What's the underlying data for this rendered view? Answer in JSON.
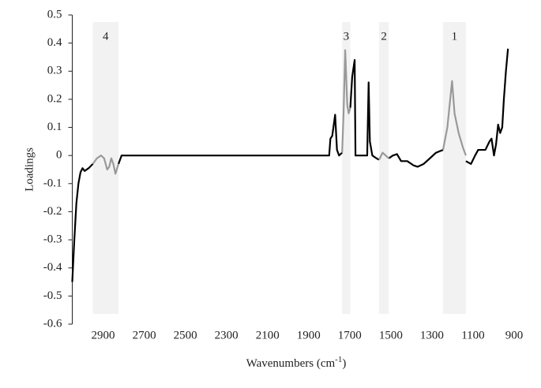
{
  "chart_data": {
    "type": "line",
    "ylabel": "Loadings",
    "xlabel": {
      "text": "Wavenumbers (cm",
      "sup": "-1",
      "tail": ")"
    },
    "xlim": [
      3050,
      870
    ],
    "xticks": [
      2900,
      2700,
      2500,
      2300,
      2100,
      1900,
      1700,
      1500,
      1300,
      1100,
      900
    ],
    "ylim": [
      -0.6,
      0.5
    ],
    "yticks": [
      0.5,
      0.4,
      0.3,
      0.2,
      0.1,
      0,
      -0.1,
      -0.2,
      -0.3,
      -0.4,
      -0.5,
      -0.6
    ],
    "bands": [
      {
        "label": "4",
        "from": 2950,
        "to": 2825
      },
      {
        "label": "3",
        "from": 1737,
        "to": 1697
      },
      {
        "label": "2",
        "from": 1557,
        "to": 1510
      },
      {
        "label": "1",
        "from": 1246,
        "to": 1135
      }
    ],
    "band_color": "#f2f2f2",
    "series": [
      {
        "color": "#000000",
        "x": [
          3050,
          3040,
          3030,
          3020,
          3010,
          3000,
          2990,
          2970,
          2950,
          2900,
          2825,
          2810,
          1800,
          1794,
          1785,
          1771,
          1762,
          1752,
          1737,
          1720,
          1697,
          1688,
          1676,
          1672,
          1615,
          1608,
          1602,
          1590,
          1570,
          1557,
          1535,
          1510,
          1490,
          1470,
          1450,
          1420,
          1390,
          1370,
          1340,
          1310,
          1280,
          1246,
          1200,
          1135,
          1110,
          1090,
          1075,
          1040,
          1020,
          1010,
          998,
          988,
          978,
          968,
          958,
          950,
          940,
          930
        ],
        "values": [
          -0.45,
          -0.3,
          -0.17,
          -0.1,
          -0.06,
          -0.045,
          -0.055,
          -0.045,
          -0.03,
          null,
          -0.03,
          0,
          0,
          0.06,
          0.07,
          0.145,
          0.02,
          0,
          0.01,
          null,
          0.17,
          0.28,
          0.34,
          0,
          0,
          0.26,
          0.05,
          0,
          -0.01,
          -0.015,
          null,
          -0.01,
          0,
          0.005,
          -0.02,
          -0.02,
          -0.035,
          -0.04,
          -0.03,
          -0.01,
          0.01,
          0.02,
          null,
          -0.02,
          -0.03,
          0,
          0.02,
          0.02,
          0.05,
          0.06,
          0,
          0.04,
          0.11,
          0.08,
          0.1,
          0.2,
          0.3,
          0.38
        ]
      },
      {
        "color": "#999999",
        "x": [
          2950,
          2930,
          2910,
          2895,
          2880,
          2870,
          2860,
          2850,
          2840,
          2825,
          2000,
          1737,
          1730,
          1722,
          1712,
          1705,
          1697,
          1600,
          1557,
          1540,
          1525,
          1510,
          1400,
          1246,
          1225,
          1202,
          1190,
          1170,
          1150,
          1135
        ],
        "values": [
          -0.03,
          -0.01,
          0,
          -0.01,
          -0.05,
          -0.04,
          -0.01,
          -0.03,
          -0.065,
          -0.03,
          null,
          0.01,
          0.15,
          0.375,
          0.18,
          0.15,
          0.17,
          null,
          -0.015,
          0.01,
          0,
          -0.01,
          null,
          0.02,
          0.1,
          0.265,
          0.15,
          0.08,
          0.03,
          0
        ]
      }
    ]
  }
}
